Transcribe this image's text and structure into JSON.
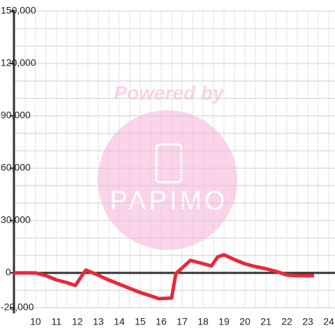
{
  "chart_data": {
    "type": "line",
    "watermark": {
      "caption": "Powered by",
      "brand": "PAPIMO"
    },
    "x": [
      8.97,
      10,
      10.5,
      11,
      11.5,
      11.9,
      12.4,
      12.9,
      13.4,
      13.9,
      14.4,
      14.9,
      15.4,
      15.9,
      16.5,
      16.7,
      17.4,
      17.9,
      18.4,
      18.7,
      19,
      19.5,
      20,
      20.5,
      21,
      21.5,
      22,
      22.5,
      23.3
    ],
    "series": [
      {
        "color": "#e8283c",
        "values": [
          0,
          0,
          -1600,
          -4000,
          -5600,
          -7200,
          1600,
          -800,
          -3600,
          -6000,
          -8400,
          -10800,
          -12800,
          -14800,
          -14400,
          -400,
          7200,
          5600,
          4000,
          9200,
          10400,
          7600,
          5200,
          3600,
          2400,
          800,
          -1200,
          -1600,
          -1600
        ]
      }
    ],
    "xlim": [
      8.97,
      24.3
    ],
    "xticks": [
      10,
      11,
      12,
      13,
      14,
      15,
      16,
      17,
      18,
      19,
      20,
      21,
      22,
      23,
      24
    ],
    "xminor": [
      9.5,
      10.5,
      11.5,
      12.5,
      13.5,
      14.5,
      15.5,
      16.5,
      17.5,
      18.5,
      19.5,
      20.5,
      21.5,
      22.5,
      23.5
    ],
    "ylim": [
      -20000,
      150000
    ],
    "yticks": [
      {
        "value": -20000,
        "label": "-20,000"
      },
      0,
      {
        "value": 30000,
        "label": "30,000"
      },
      {
        "value": 60000,
        "label": "60,000"
      },
      {
        "value": 90000,
        "label": "90,000"
      },
      {
        "value": 120000,
        "label": "120,000"
      },
      {
        "value": 150000,
        "label": "150,000"
      }
    ],
    "yminor": [
      -10000,
      10000,
      20000,
      40000,
      50000,
      70000,
      80000,
      100000,
      110000,
      130000,
      140000
    ],
    "grid": true
  }
}
